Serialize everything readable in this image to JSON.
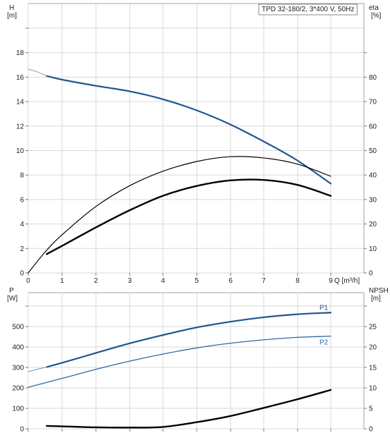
{
  "chart_data": [
    {
      "type": "line",
      "title": "TPD 32-180/2, 3*400 V, 50Hz",
      "xlabel": "Q [m³/h]",
      "ylabel": "H",
      "ylabel_unit": "[m]",
      "y2label": "eta",
      "y2label_unit": "[%]",
      "xlim": [
        0,
        9
      ],
      "ylim": [
        0,
        20
      ],
      "y2lim": [
        0,
        100
      ],
      "x_ticks": [
        "0",
        "1",
        "2",
        "3",
        "4",
        "5",
        "6",
        "7",
        "8",
        "9"
      ],
      "y_ticks": [
        "0",
        "2",
        "4",
        "6",
        "8",
        "10",
        "12",
        "14",
        "16",
        "18"
      ],
      "y2_ticks": [
        "0",
        "10",
        "20",
        "30",
        "40",
        "50",
        "60",
        "70",
        "80"
      ],
      "grid": true,
      "series": [
        {
          "axis": "left",
          "color": "#1f5590",
          "x": [
            0.55,
            1.0,
            2.0,
            3.0,
            4.0,
            5.0,
            6.0,
            7.0,
            8.0,
            9.0
          ],
          "y": [
            16.1,
            15.8,
            15.3,
            14.85,
            14.2,
            13.3,
            12.15,
            10.75,
            9.2,
            7.3
          ]
        },
        {
          "axis": "left",
          "color": "#999999",
          "x": [
            0.0,
            0.25,
            0.55
          ],
          "y": [
            16.65,
            16.45,
            16.1
          ]
        },
        {
          "axis": "right",
          "color": "#000000",
          "x": [
            0.0,
            0.5,
            1.0,
            2.0,
            3.0,
            4.0,
            5.0,
            6.0,
            7.0,
            8.0,
            9.0
          ],
          "y": [
            0.0,
            8.5,
            15.5,
            27.0,
            35.5,
            41.5,
            45.5,
            47.5,
            47.0,
            44.5,
            39.5
          ]
        },
        {
          "axis": "right",
          "color": "#000000",
          "x": [
            0.55,
            1.0,
            2.0,
            3.0,
            4.0,
            5.0,
            6.0,
            7.0,
            8.0,
            9.0
          ],
          "y": [
            7.7,
            11.0,
            18.5,
            25.5,
            31.5,
            35.5,
            37.8,
            38.0,
            36.0,
            31.5
          ]
        }
      ]
    },
    {
      "type": "line",
      "xlim": [
        0,
        9
      ],
      "ylabel": "P",
      "ylabel_unit": "[W]",
      "y2label": "NPSH",
      "y2label_unit": "[m]",
      "ylim": [
        0,
        580
      ],
      "y2lim": [
        0,
        29
      ],
      "y_ticks": [
        "0",
        "100",
        "200",
        "300",
        "400",
        "500"
      ],
      "y2_ticks": [
        "0",
        "5",
        "10",
        "15",
        "20",
        "25"
      ],
      "grid": true,
      "series": [
        {
          "name": "P1",
          "axis": "left",
          "color": "#1f5590",
          "x": [
            0.55,
            1.0,
            2.0,
            3.0,
            4.0,
            5.0,
            6.0,
            7.0,
            8.0,
            9.0
          ],
          "y": [
            302,
            322,
            370,
            417,
            458,
            495,
            523,
            545,
            560,
            568
          ]
        },
        {
          "name": "P2",
          "axis": "left",
          "color": "#2f6aa5",
          "x": [
            0.0,
            1.0,
            2.0,
            3.0,
            4.0,
            5.0,
            6.0,
            7.0,
            8.0,
            9.0
          ],
          "y": [
            203,
            246,
            290,
            330,
            365,
            395,
            418,
            435,
            447,
            453
          ]
        },
        {
          "axis": "left",
          "color": "#6d8fb5",
          "x": [
            0.0,
            0.55
          ],
          "y": [
            280,
            302
          ]
        },
        {
          "axis": "right",
          "color": "#000000",
          "x": [
            0.55,
            1.0,
            2.0,
            3.0,
            4.0,
            5.0,
            6.0,
            7.0,
            8.0,
            9.0
          ],
          "y": [
            0.7,
            0.6,
            0.35,
            0.3,
            0.45,
            1.6,
            3.1,
            5.1,
            7.2,
            9.5
          ]
        }
      ]
    }
  ]
}
